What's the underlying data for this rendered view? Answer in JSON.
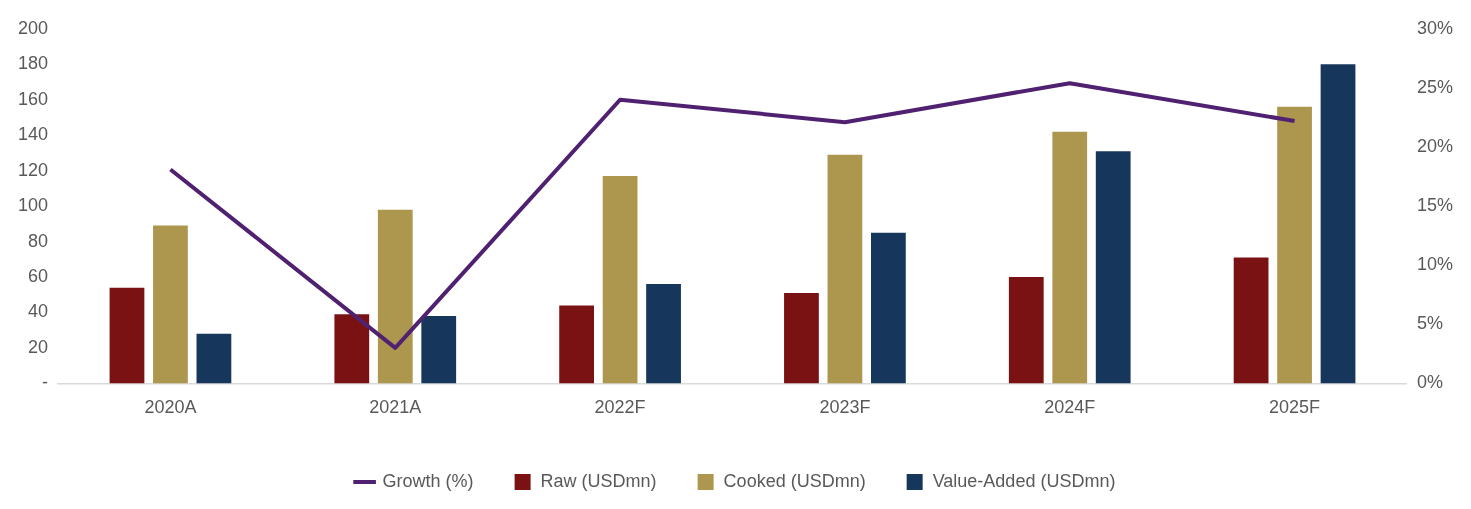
{
  "chart_data": {
    "type": "bar",
    "categories": [
      "2020A",
      "2021A",
      "2022F",
      "2023F",
      "2024F",
      "2025F"
    ],
    "series": [
      {
        "name": "Raw (USDmn)",
        "color": "#7a1214",
        "values": [
          54,
          39,
          44,
          51,
          60,
          71
        ]
      },
      {
        "name": "Cooked (USDmn)",
        "color": "#ad974f",
        "values": [
          89,
          98,
          117,
          129,
          142,
          156
        ]
      },
      {
        "name": "Value-Added (USDmn)",
        "color": "#16365c",
        "values": [
          28,
          38,
          56,
          85,
          131,
          180
        ]
      },
      {
        "name": "Growth (%)",
        "color": "#4f2170",
        "type": "line",
        "axis": "y2",
        "values": [
          18.1,
          3.0,
          24.0,
          22.1,
          25.4,
          22.2
        ]
      }
    ],
    "ylim": [
      0,
      200
    ],
    "yticks": [
      {
        "value": 0,
        "label": "-"
      },
      20,
      40,
      60,
      80,
      100,
      120,
      140,
      160,
      180,
      200
    ],
    "y2lim": [
      0,
      30
    ],
    "y2ticks": [
      {
        "value": 0,
        "label": "0%"
      },
      {
        "value": 5,
        "label": "5%"
      },
      {
        "value": 10,
        "label": "10%"
      },
      {
        "value": 15,
        "label": "15%"
      },
      {
        "value": 20,
        "label": "20%"
      },
      {
        "value": 25,
        "label": "25%"
      },
      {
        "value": 30,
        "label": "30%"
      }
    ],
    "legend": "bottom",
    "grid": false,
    "marker": "none",
    "line_style": "solid"
  }
}
